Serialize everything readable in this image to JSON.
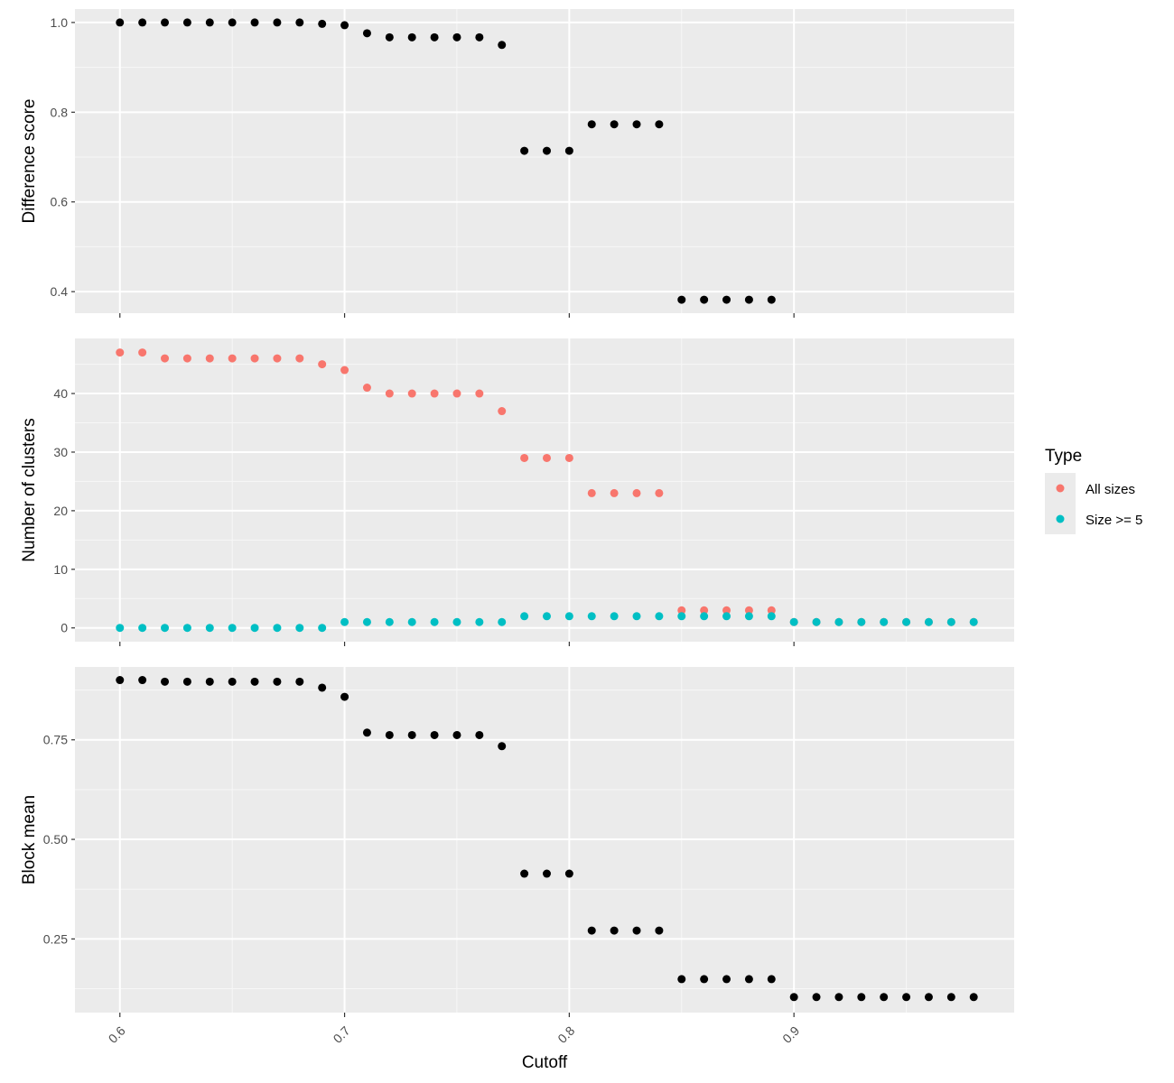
{
  "chart_data": {
    "type": "scatter",
    "facet_layout": "stacked, shared x-axis",
    "grid": true,
    "legend_position": "right",
    "x": {
      "label": "Cutoff",
      "range": [
        0.58,
        0.998
      ],
      "ticks": [
        0.6,
        0.7,
        0.8,
        0.9
      ],
      "tick_labels": [
        "0.6",
        "0.7",
        "0.8",
        "0.9"
      ]
    },
    "legend": {
      "title": "Type",
      "entries": [
        {
          "label": "All sizes",
          "color": "#F8766D"
        },
        {
          "label": "Size >= 5",
          "color": "#00BFC4"
        }
      ]
    },
    "panels": [
      {
        "ylabel": "Difference score",
        "ylim": [
          0.352,
          1.03
        ],
        "yticks": [
          0.4,
          0.6,
          0.8,
          1.0
        ],
        "ytick_labels": [
          "0.4",
          "0.6",
          "0.8",
          "1.0"
        ],
        "series": [
          {
            "color": "#000000",
            "x": [
              0.6,
              0.61,
              0.62,
              0.63,
              0.64,
              0.65,
              0.66,
              0.67,
              0.68,
              0.69,
              0.7,
              0.71,
              0.72,
              0.73,
              0.74,
              0.75,
              0.76,
              0.77,
              0.78,
              0.79,
              0.8,
              0.81,
              0.82,
              0.83,
              0.84,
              0.85,
              0.86,
              0.87,
              0.88,
              0.89
            ],
            "y": [
              1.0,
              1.0,
              1.0,
              1.0,
              1.0,
              1.0,
              1.0,
              1.0,
              1.0,
              0.997,
              0.994,
              0.976,
              0.967,
              0.967,
              0.967,
              0.967,
              0.967,
              0.95,
              0.714,
              0.714,
              0.714,
              0.773,
              0.773,
              0.773,
              0.773,
              0.382,
              0.382,
              0.382,
              0.382,
              0.382
            ]
          }
        ]
      },
      {
        "ylabel": "Number of clusters",
        "ylim": [
          -2.35,
          49.4
        ],
        "yticks": [
          0,
          10,
          20,
          30,
          40
        ],
        "ytick_labels": [
          "0",
          "10",
          "20",
          "30",
          "40"
        ],
        "series": [
          {
            "name": "All sizes",
            "color": "#F8766D",
            "x": [
              0.6,
              0.61,
              0.62,
              0.63,
              0.64,
              0.65,
              0.66,
              0.67,
              0.68,
              0.69,
              0.7,
              0.71,
              0.72,
              0.73,
              0.74,
              0.75,
              0.76,
              0.77,
              0.78,
              0.79,
              0.8,
              0.81,
              0.82,
              0.83,
              0.84,
              0.85,
              0.86,
              0.87,
              0.88,
              0.89,
              0.9,
              0.91,
              0.92,
              0.93,
              0.94,
              0.95,
              0.96,
              0.97,
              0.98
            ],
            "y": [
              47,
              47,
              46,
              46,
              46,
              46,
              46,
              46,
              46,
              45,
              44,
              41,
              40,
              40,
              40,
              40,
              40,
              37,
              29,
              29,
              29,
              23,
              23,
              23,
              23,
              3,
              3,
              3,
              3,
              3,
              1,
              1,
              1,
              1,
              1,
              1,
              1,
              1,
              1
            ]
          },
          {
            "name": "Size >= 5",
            "color": "#00BFC4",
            "x": [
              0.6,
              0.61,
              0.62,
              0.63,
              0.64,
              0.65,
              0.66,
              0.67,
              0.68,
              0.69,
              0.7,
              0.71,
              0.72,
              0.73,
              0.74,
              0.75,
              0.76,
              0.77,
              0.78,
              0.79,
              0.8,
              0.81,
              0.82,
              0.83,
              0.84,
              0.85,
              0.86,
              0.87,
              0.88,
              0.89,
              0.9,
              0.91,
              0.92,
              0.93,
              0.94,
              0.95,
              0.96,
              0.97,
              0.98
            ],
            "y": [
              0,
              0,
              0,
              0,
              0,
              0,
              0,
              0,
              0,
              0,
              1,
              1,
              1,
              1,
              1,
              1,
              1,
              1,
              2,
              2,
              2,
              2,
              2,
              2,
              2,
              2,
              2,
              2,
              2,
              2,
              1,
              1,
              1,
              1,
              1,
              1,
              1,
              1,
              1
            ]
          }
        ]
      },
      {
        "ylabel": "Block mean",
        "ylim": [
          0.065,
          0.933
        ],
        "yticks": [
          0.25,
          0.5,
          0.75
        ],
        "ytick_labels": [
          "0.25",
          "0.50",
          "0.75"
        ],
        "series": [
          {
            "color": "#000000",
            "x": [
              0.6,
              0.61,
              0.62,
              0.63,
              0.64,
              0.65,
              0.66,
              0.67,
              0.68,
              0.69,
              0.7,
              0.71,
              0.72,
              0.73,
              0.74,
              0.75,
              0.76,
              0.77,
              0.78,
              0.79,
              0.8,
              0.81,
              0.82,
              0.83,
              0.84,
              0.85,
              0.86,
              0.87,
              0.88,
              0.89,
              0.9,
              0.91,
              0.92,
              0.93,
              0.94,
              0.95,
              0.96,
              0.97,
              0.98
            ],
            "y": [
              0.9,
              0.9,
              0.896,
              0.896,
              0.896,
              0.896,
              0.896,
              0.896,
              0.896,
              0.881,
              0.858,
              0.768,
              0.762,
              0.762,
              0.762,
              0.762,
              0.762,
              0.734,
              0.414,
              0.414,
              0.414,
              0.271,
              0.271,
              0.271,
              0.271,
              0.149,
              0.149,
              0.149,
              0.149,
              0.149,
              0.104,
              0.104,
              0.104,
              0.104,
              0.104,
              0.104,
              0.104,
              0.104,
              0.104
            ]
          }
        ]
      }
    ]
  }
}
